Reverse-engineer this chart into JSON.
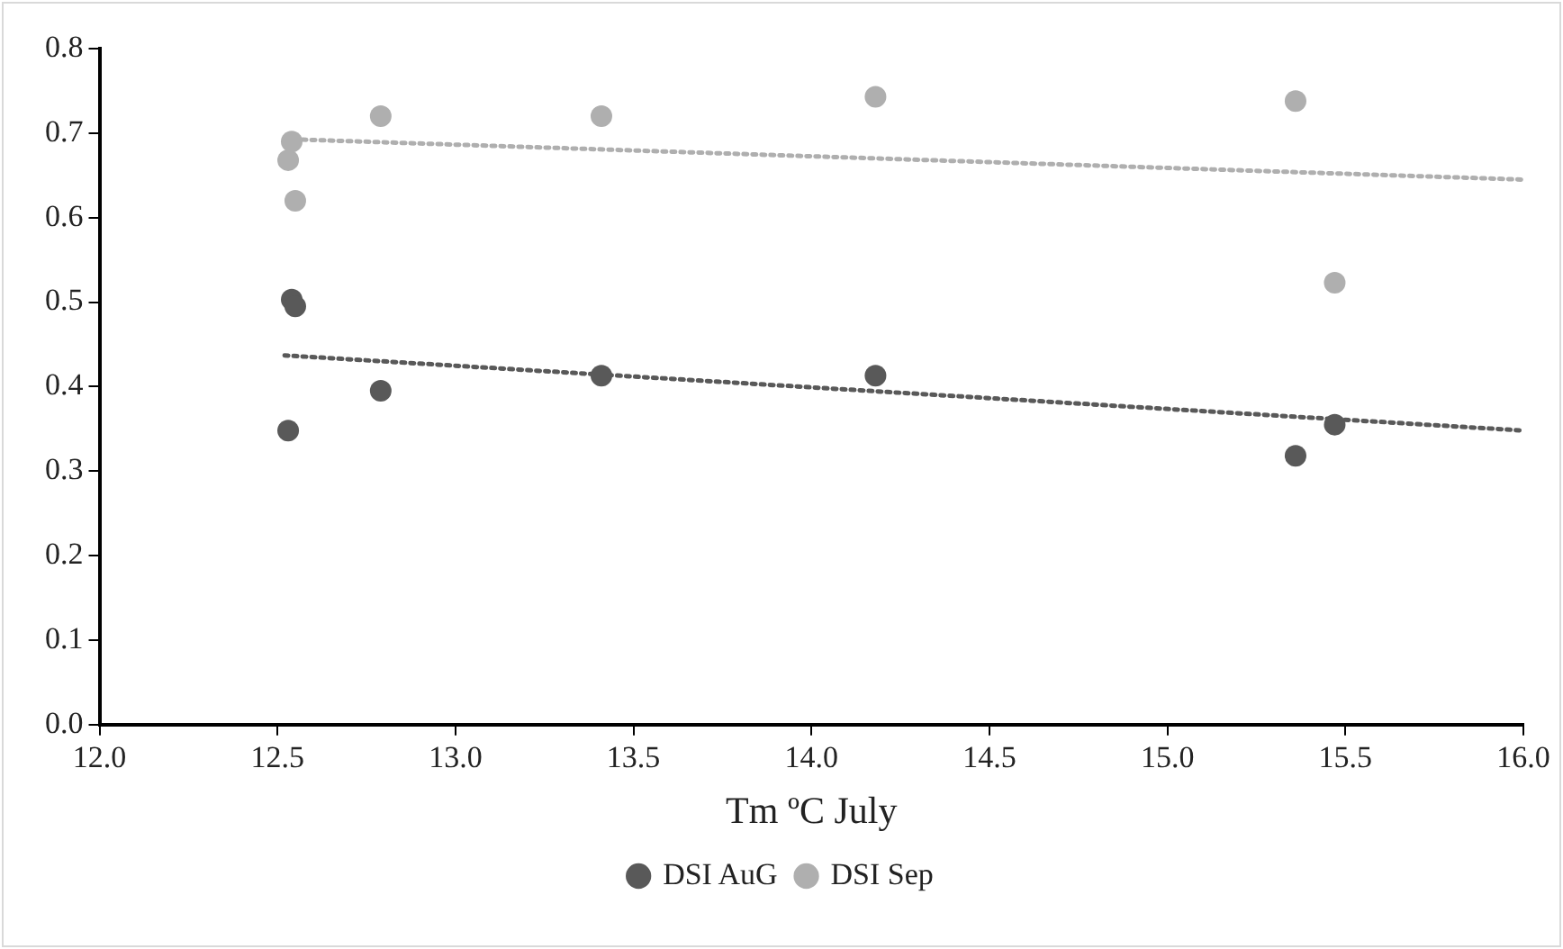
{
  "chart_data": {
    "type": "scatter",
    "xlabel": "Tm ºC July",
    "xlim": [
      12.0,
      16.0
    ],
    "xticks": [
      {
        "value": 12,
        "label": "12.0"
      },
      {
        "value": 12.5,
        "label": "12.5"
      },
      {
        "value": 13,
        "label": "13.0"
      },
      {
        "value": 13.5,
        "label": "13.5"
      },
      {
        "value": 14,
        "label": "14.0"
      },
      {
        "value": 14.5,
        "label": "14.5"
      },
      {
        "value": 15,
        "label": "15.0"
      },
      {
        "value": 15.5,
        "label": "15.5"
      },
      {
        "value": 16,
        "label": "16.0"
      }
    ],
    "ylim": [
      0,
      0.8
    ],
    "yticks": [
      {
        "value": 0,
        "label": "0.0"
      },
      {
        "value": 0.1,
        "label": "0.1"
      },
      {
        "value": 0.2,
        "label": "0.2"
      },
      {
        "value": 0.3,
        "label": "0.3"
      },
      {
        "value": 0.4,
        "label": "0.4"
      },
      {
        "value": 0.5,
        "label": "0.5"
      },
      {
        "value": 0.6,
        "label": "0.6"
      },
      {
        "value": 0.7,
        "label": "0.7"
      },
      {
        "value": 0.8,
        "label": "0.8"
      }
    ],
    "grid": false,
    "legend": "bottom",
    "marker": "circle",
    "series": [
      {
        "name": "DSI AuG",
        "color": "#595959",
        "x": [
          12.53,
          12.54,
          12.55,
          12.79,
          13.41,
          14.18,
          15.36,
          15.47
        ],
        "values": [
          0.348,
          0.503,
          0.495,
          0.395,
          0.413,
          0.413,
          0.318,
          0.355
        ]
      },
      {
        "name": "DSI Sep",
        "color": "#afafaf",
        "x": [
          12.53,
          12.54,
          12.55,
          12.79,
          13.41,
          14.18,
          15.36,
          15.47
        ],
        "values": [
          0.668,
          0.69,
          0.62,
          0.72,
          0.72,
          0.743,
          0.738,
          0.523
        ]
      },
      {
        "type": "line",
        "line_style": "dotted",
        "marker": "none",
        "color": "#595959",
        "x": [
          12.52,
          16.0
        ],
        "values": [
          0.437,
          0.348
        ]
      },
      {
        "type": "line",
        "line_style": "dotted",
        "marker": "none",
        "color": "#afafaf",
        "x": [
          12.52,
          16.0
        ],
        "values": [
          0.693,
          0.645
        ]
      }
    ]
  }
}
